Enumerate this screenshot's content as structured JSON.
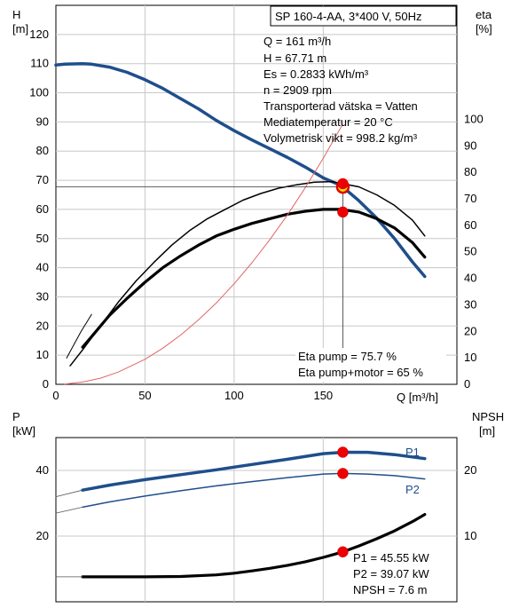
{
  "chart_data": [
    {
      "type": "line",
      "title": "SP 160-4-AA, 3*400 V, 50Hz",
      "xlabel": "Q [m³/h]",
      "ylabel_left": [
        "H",
        "[m]"
      ],
      "ylabel_right": [
        "eta",
        "[%]"
      ],
      "xlim": [
        0,
        225
      ],
      "ylim_left": [
        0,
        130
      ],
      "ylim_right": [
        0,
        143
      ],
      "x_ticks": [
        0,
        50,
        100,
        150
      ],
      "y_ticks_left": [
        0,
        10,
        20,
        30,
        40,
        50,
        60,
        70,
        80,
        90,
        100,
        110,
        120
      ],
      "y_ticks_right": [
        0,
        10,
        20,
        30,
        40,
        50,
        60,
        70,
        80,
        90,
        100
      ],
      "grid": true,
      "info_lines": [
        "Q = 161 m³/h",
        "H = 67.71 m",
        "Es = 0.2833 kWh/m³",
        "n = 2909 rpm",
        "Transporterad vätska = Vatten",
        "Mediatemperatur = 20 °C",
        "Volymetrisk vikt = 998.2 kg/m³"
      ],
      "bottom_info_lines": [
        "Eta pump = 75.7 %",
        "Eta pump+motor = 65 %"
      ],
      "duty_point": {
        "x": 161,
        "y": 67.71
      },
      "series": [
        {
          "color": "#1f4e8c",
          "axis": "left",
          "width": 3.5,
          "x": [
            0,
            5,
            10,
            15,
            20,
            30,
            40,
            50,
            60,
            70,
            80,
            90,
            100,
            110,
            120,
            130,
            140,
            150,
            160,
            170,
            180,
            190,
            200,
            207
          ],
          "y": [
            109.5,
            109.8,
            109.9,
            110,
            109.8,
            108.8,
            107,
            104.5,
            101.5,
            98,
            94.5,
            90.5,
            87,
            83.8,
            80.8,
            77.8,
            74.5,
            70.8,
            68.2,
            63,
            57,
            50,
            42,
            37
          ]
        },
        {
          "color": "#000000",
          "axis": "right",
          "width": 1.5,
          "x": [
            8,
            15,
            25,
            35,
            45,
            55,
            65,
            75,
            85,
            95,
            105,
            115,
            125,
            135,
            145,
            155,
            161,
            170,
            180,
            190,
            200,
            207
          ],
          "y": [
            7,
            13,
            22,
            31,
            39,
            46,
            52.5,
            58,
            62.5,
            66,
            69.5,
            72,
            74,
            75.3,
            76.3,
            76.5,
            75.7,
            74.5,
            71.5,
            67.5,
            62,
            56
          ]
        },
        {
          "color": "#000000",
          "axis": "right",
          "width": 3.2,
          "x": [
            15,
            20,
            30,
            40,
            50,
            60,
            70,
            80,
            90,
            100,
            110,
            120,
            130,
            140,
            150,
            160,
            170,
            180,
            190,
            200,
            207
          ],
          "y": [
            14,
            18,
            26,
            32.5,
            38.5,
            44,
            48.5,
            52.5,
            56,
            58.5,
            60.7,
            62.5,
            64.2,
            65.3,
            66,
            66,
            65,
            62.5,
            59,
            53.5,
            48
          ]
        },
        {
          "color": "#e06666",
          "axis": "left",
          "width": 1,
          "x": [
            5,
            15,
            25,
            35,
            50,
            60,
            70,
            80,
            90,
            100,
            110,
            120,
            130,
            140,
            150,
            161
          ],
          "y": [
            0.1,
            0.8,
            2.1,
            4.2,
            8.6,
            12.4,
            16.9,
            22.1,
            27.9,
            34.5,
            41.7,
            49.6,
            58.2,
            67.5,
            77.5,
            89.3
          ]
        },
        {
          "color": "#000000",
          "axis": "left",
          "width": 1,
          "x": [
            6,
            14,
            20
          ],
          "y": [
            9,
            18,
            24
          ]
        }
      ],
      "markers": [
        {
          "x": 161,
          "y": 67.71,
          "axis": "left",
          "type": "duty"
        },
        {
          "x": 161,
          "y": 75.7,
          "axis": "right",
          "type": "red"
        },
        {
          "x": 161,
          "y": 65,
          "axis": "right",
          "type": "red"
        }
      ]
    },
    {
      "type": "line",
      "ylabel_left": [
        "P",
        "[kW]"
      ],
      "ylabel_right": [
        "NPSH",
        "[m]"
      ],
      "xlim": [
        0,
        225
      ],
      "ylim_left": [
        0,
        50
      ],
      "ylim_right": [
        0,
        25
      ],
      "y_ticks_left": [
        20,
        40
      ],
      "y_ticks_right": [
        10,
        20
      ],
      "grid": true,
      "info_lines": [
        "P1 = 45.55 kW",
        "P2 = 39.07 kW",
        "NPSH = 7.6 m"
      ],
      "series": [
        {
          "name": "P1",
          "color": "#1f4e8c",
          "axis": "left",
          "width": 3.5,
          "x": [
            15,
            30,
            50,
            70,
            90,
            110,
            130,
            150,
            161,
            175,
            190,
            207
          ],
          "y": [
            34,
            35.5,
            37.2,
            38.7,
            40.2,
            41.8,
            43.4,
            45.1,
            45.55,
            45.5,
            44.8,
            43.6
          ]
        },
        {
          "name": "P2",
          "color": "#1f4e8c",
          "axis": "left",
          "width": 1.5,
          "x": [
            15,
            30,
            50,
            70,
            90,
            110,
            130,
            150,
            161,
            175,
            190,
            207
          ],
          "y": [
            28.8,
            30.4,
            32.2,
            33.8,
            35.3,
            36.6,
            37.8,
            38.9,
            39.07,
            38.9,
            38.4,
            37.4
          ]
        },
        {
          "color": "#000000",
          "axis": "right",
          "width": 3.2,
          "x": [
            15,
            30,
            50,
            70,
            90,
            100,
            110,
            120,
            130,
            140,
            150,
            161,
            170,
            180,
            190,
            200,
            207
          ],
          "y": [
            3.8,
            3.8,
            3.8,
            3.85,
            4.1,
            4.35,
            4.7,
            5.1,
            5.55,
            6.1,
            6.75,
            7.6,
            8.5,
            9.6,
            10.8,
            12.2,
            13.3
          ]
        },
        {
          "color": "#555555",
          "axis": "left",
          "width": 0.8,
          "x": [
            0,
            15
          ],
          "y": [
            32,
            34
          ]
        },
        {
          "color": "#555555",
          "axis": "left",
          "width": 0.8,
          "x": [
            0,
            15
          ],
          "y": [
            27,
            28.8
          ]
        },
        {
          "color": "#555555",
          "axis": "right",
          "width": 0.8,
          "x": [
            0,
            15
          ],
          "y": [
            3.8,
            3.8
          ]
        }
      ],
      "markers": [
        {
          "x": 161,
          "y": 45.55,
          "axis": "left",
          "type": "red"
        },
        {
          "x": 161,
          "y": 39.07,
          "axis": "left",
          "type": "red"
        },
        {
          "x": 161,
          "y": 7.6,
          "axis": "right",
          "type": "red"
        }
      ]
    }
  ]
}
